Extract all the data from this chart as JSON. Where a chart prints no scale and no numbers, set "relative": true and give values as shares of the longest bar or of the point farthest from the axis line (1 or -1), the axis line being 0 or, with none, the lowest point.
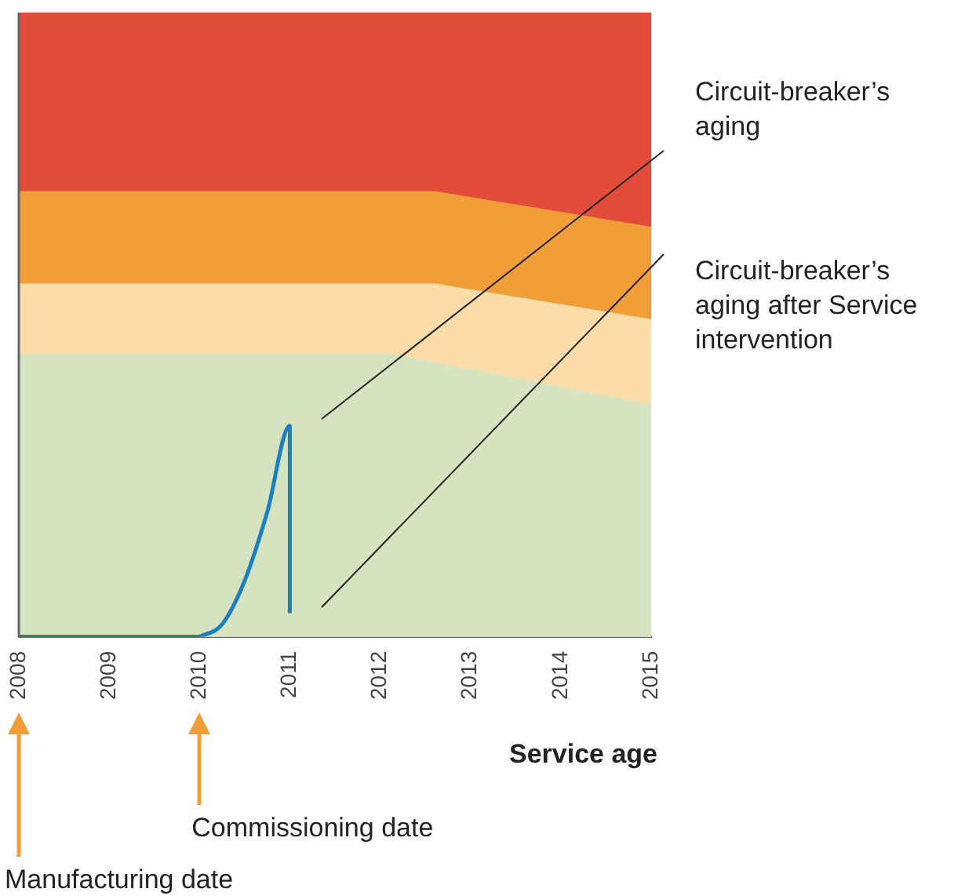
{
  "chart_data": {
    "type": "area",
    "relative": true,
    "legend": false,
    "grid": false,
    "xlabel": "Service age",
    "xlim": [
      2008,
      2015
    ],
    "xticks": [
      2008,
      2009,
      2010,
      2011,
      2012,
      2013,
      2014,
      2015
    ],
    "series": [
      {
        "color": "#e34b3b",
        "x": [
          2008,
          2012.6,
          2015
        ],
        "values": [
          1,
          1,
          1
        ]
      },
      {
        "color": "#f29e38",
        "x": [
          2008,
          2012.6,
          2015
        ],
        "values": [
          0.714,
          0.714,
          0.657
        ]
      },
      {
        "color": "#fcdca8",
        "x": [
          2008,
          2012.6,
          2015
        ],
        "values": [
          0.566,
          0.566,
          0.509
        ]
      },
      {
        "color": "#d5e3c0",
        "x": [
          2008,
          2012.1,
          2015
        ],
        "values": [
          0.454,
          0.454,
          0.373
        ]
      },
      {
        "type": "line",
        "color": "#2e6b3a",
        "x": [
          2008,
          2010
        ],
        "values": [
          0,
          0
        ]
      },
      {
        "type": "line",
        "color": "#1c7fc4",
        "x": [
          2010,
          2010.25,
          2010.5,
          2010.75,
          2011,
          2011
        ],
        "values": [
          0,
          0.02,
          0.09,
          0.2,
          0.338,
          0.038
        ]
      }
    ],
    "annotations": [
      "Circuit-breaker’s aging",
      "Circuit-breaker’s aging after Service intervention",
      "Commissioning date",
      "Manufacturing date"
    ]
  }
}
